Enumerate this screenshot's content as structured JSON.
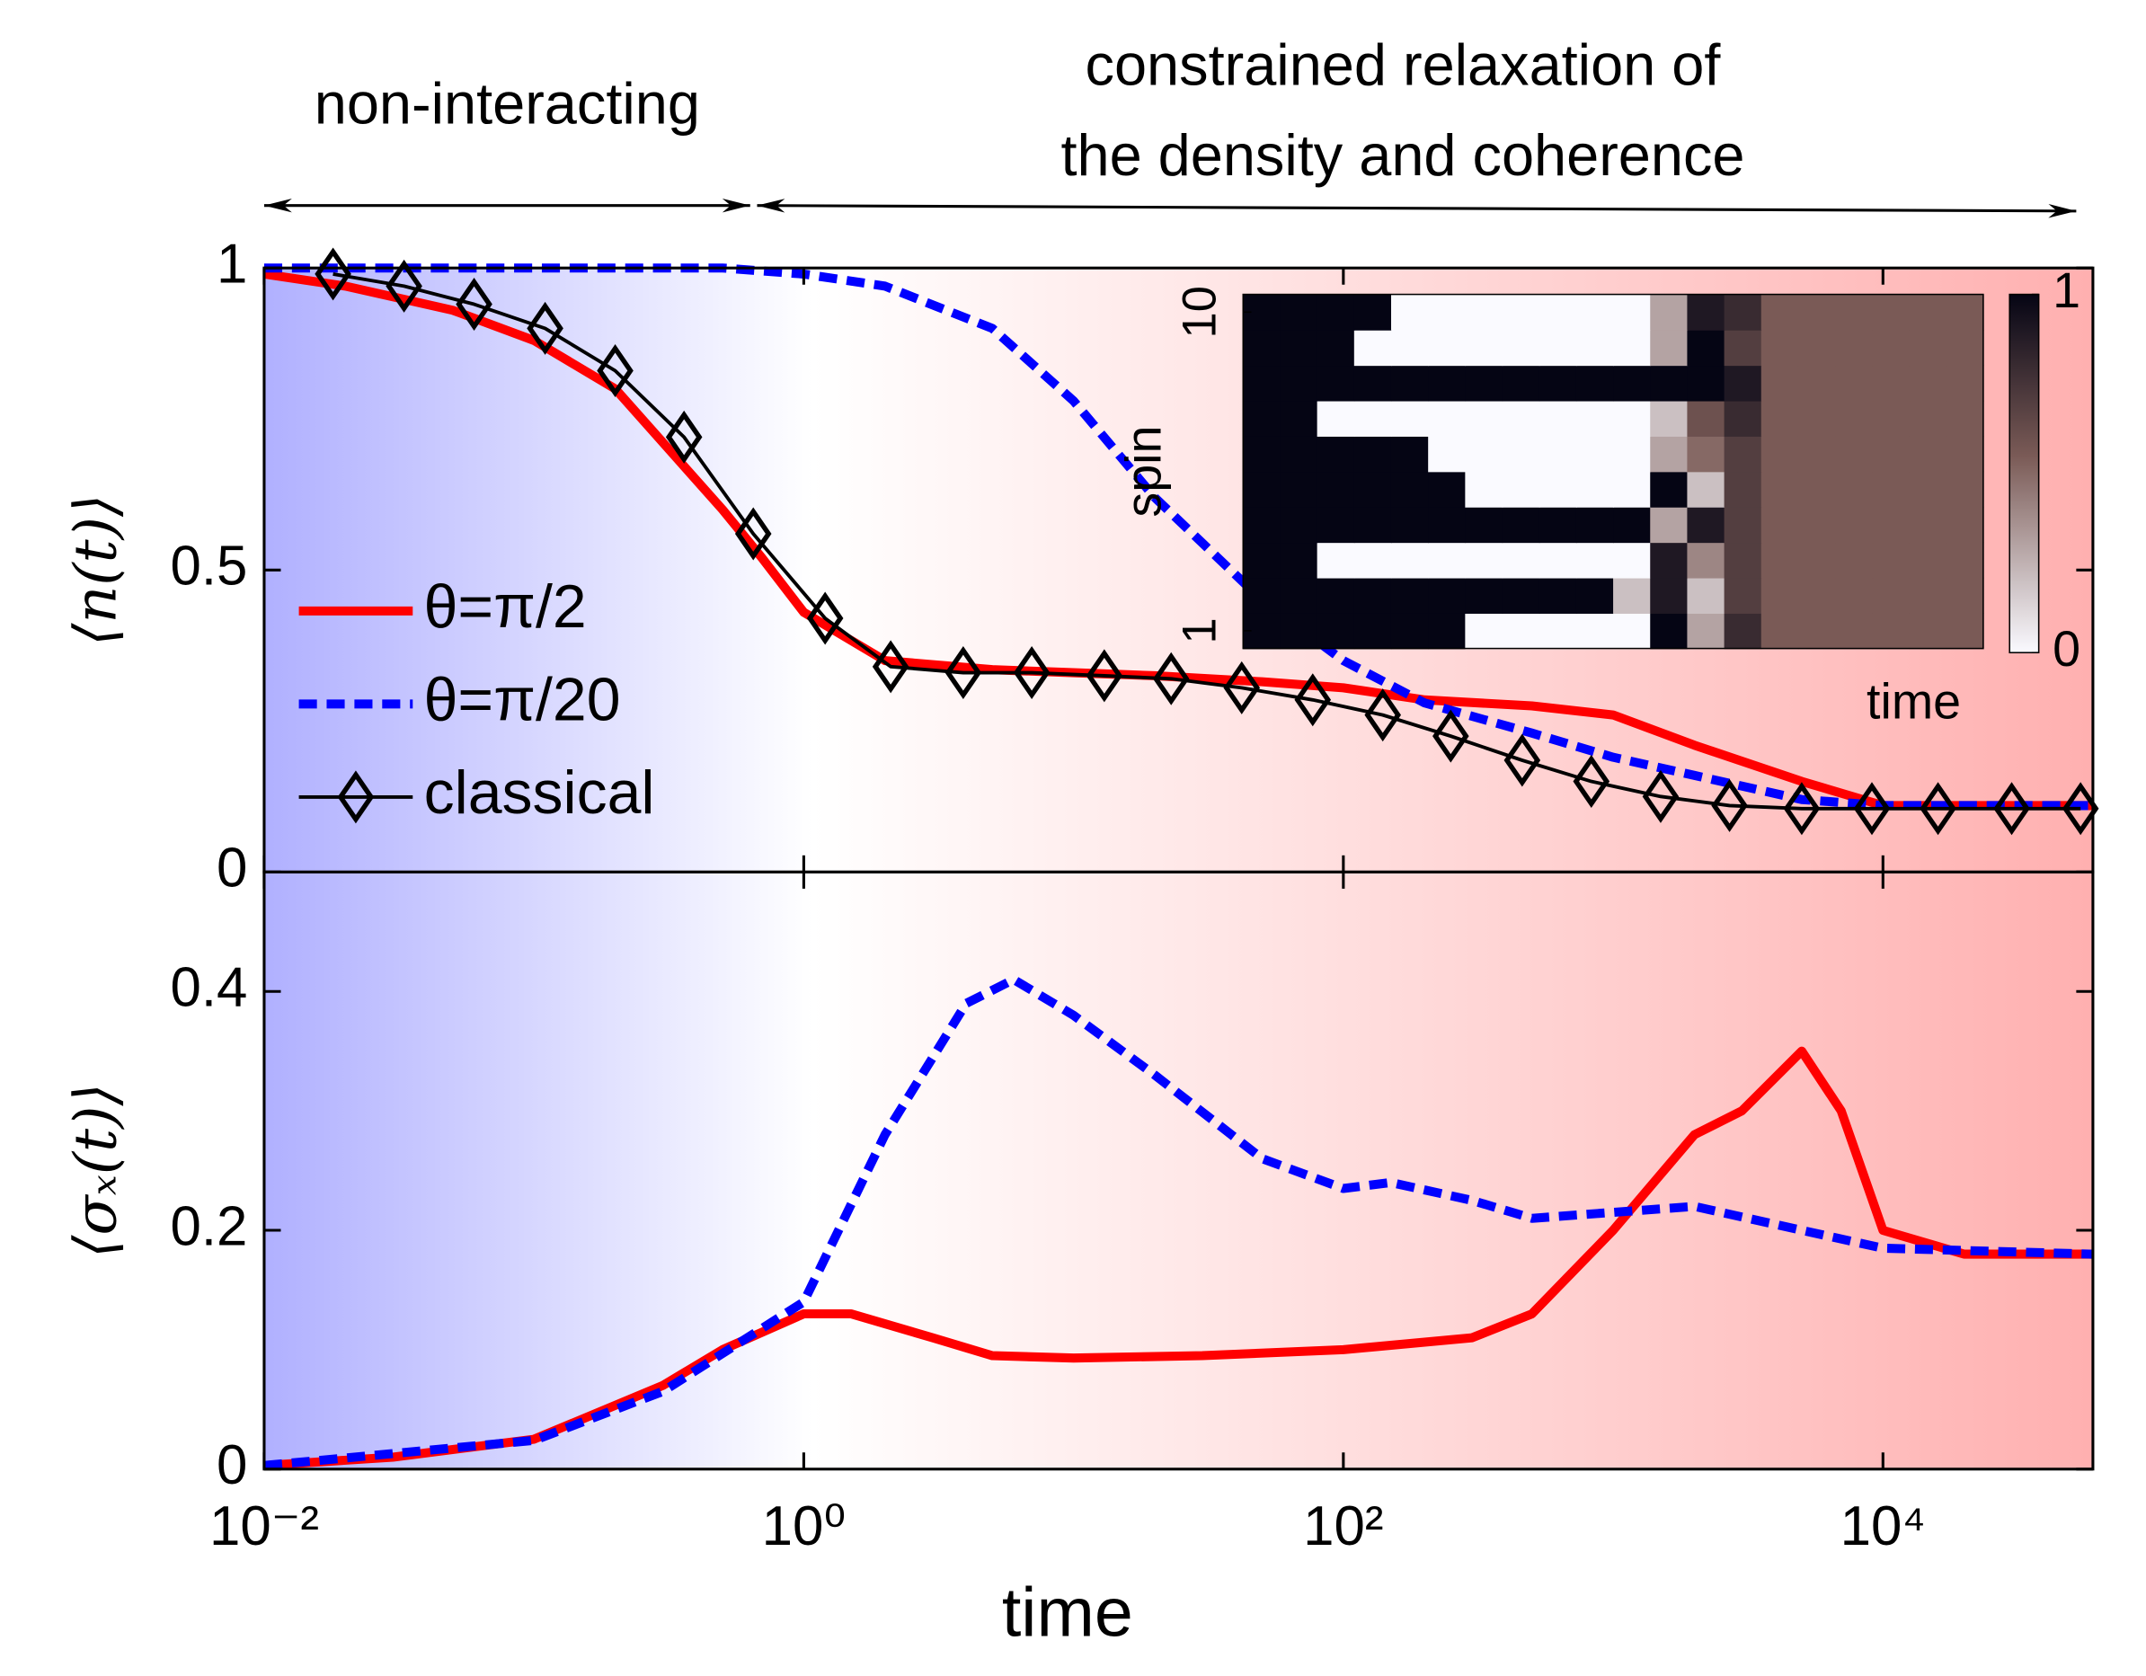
{
  "chart_data": [
    {
      "type": "line",
      "annotations": [
        "non-interacting",
        "constrained relaxation of",
        "the density and coherence"
      ],
      "ylabel": "⟨n(t)⟩",
      "xscale": "log",
      "xlim": [
        0.01,
        60000
      ],
      "ylim": [
        0,
        1
      ],
      "yticks": [
        0,
        0.5,
        1
      ],
      "legend": "left",
      "series": [
        {
          "name": "θ=π/2",
          "color": "#ff0000",
          "style": "solid",
          "x": [
            0.01,
            0.02,
            0.05,
            0.1,
            0.2,
            0.5,
            0.7,
            1,
            2,
            5,
            10,
            20,
            50,
            100,
            200,
            500,
            1000,
            2000,
            5000,
            10000,
            60000
          ],
          "values": [
            0.99,
            0.97,
            0.93,
            0.88,
            0.8,
            0.6,
            0.52,
            0.43,
            0.35,
            0.335,
            0.33,
            0.325,
            0.315,
            0.305,
            0.285,
            0.275,
            0.26,
            0.21,
            0.15,
            0.11,
            0.11
          ]
        },
        {
          "name": "θ=π/20",
          "color": "#0000ff",
          "style": "dashed",
          "x": [
            0.01,
            0.1,
            0.5,
            1,
            2,
            5,
            10,
            20,
            50,
            100,
            200,
            500,
            1000,
            2000,
            5000,
            10000,
            60000
          ],
          "values": [
            1,
            1,
            1,
            0.99,
            0.97,
            0.9,
            0.78,
            0.62,
            0.45,
            0.35,
            0.28,
            0.23,
            0.19,
            0.16,
            0.12,
            0.11,
            0.11
          ]
        },
        {
          "name": "classical",
          "color": "#000000",
          "style": "thin",
          "marker": "diamond",
          "x": [
            0.018,
            0.033,
            0.06,
            0.11,
            0.2,
            0.36,
            0.65,
            1.2,
            2.1,
            3.9,
            7,
            13,
            23,
            42,
            77,
            140,
            250,
            460,
            830,
            1500,
            2700,
            5000,
            9100,
            16000,
            30000,
            54000
          ],
          "values": [
            0.99,
            0.97,
            0.94,
            0.9,
            0.83,
            0.72,
            0.56,
            0.42,
            0.34,
            0.33,
            0.33,
            0.325,
            0.32,
            0.305,
            0.285,
            0.26,
            0.225,
            0.185,
            0.15,
            0.125,
            0.11,
            0.105,
            0.105,
            0.105,
            0.105,
            0.105
          ]
        }
      ]
    },
    {
      "type": "line",
      "xlabel": "time",
      "ylabel": "⟨σₓ(t)⟩",
      "xscale": "log",
      "xlim": [
        0.01,
        60000
      ],
      "xticks": [
        {
          "value": 0.01,
          "label": "10⁻²"
        },
        {
          "value": 1,
          "label": "10⁰"
        },
        {
          "value": 100,
          "label": "10²"
        },
        {
          "value": 10000,
          "label": "10⁴"
        }
      ],
      "ylim": [
        0,
        0.5
      ],
      "yticks": [
        0,
        0.2,
        0.4
      ],
      "series": [
        {
          "color": "#ff0000",
          "style": "solid",
          "x": [
            0.01,
            0.03,
            0.1,
            0.3,
            0.5,
            1,
            1.5,
            3,
            5,
            10,
            30,
            100,
            300,
            500,
            1000,
            2000,
            3000,
            5000,
            7000,
            10000,
            20000,
            60000
          ],
          "values": [
            0.003,
            0.01,
            0.025,
            0.07,
            0.1,
            0.13,
            0.13,
            0.11,
            0.095,
            0.093,
            0.095,
            0.1,
            0.11,
            0.13,
            0.2,
            0.28,
            0.3,
            0.35,
            0.3,
            0.2,
            0.18,
            0.18
          ]
        },
        {
          "color": "#0000ff",
          "style": "dashed",
          "x": [
            0.01,
            0.1,
            0.3,
            1,
            2,
            4,
            6,
            10,
            20,
            50,
            100,
            150,
            300,
            500,
            1000,
            2000,
            5000,
            10000,
            60000
          ],
          "values": [
            0.003,
            0.024,
            0.065,
            0.14,
            0.28,
            0.39,
            0.41,
            0.38,
            0.33,
            0.26,
            0.235,
            0.24,
            0.225,
            0.21,
            0.215,
            0.22,
            0.2,
            0.185,
            0.18
          ]
        }
      ]
    },
    {
      "type": "heatmap",
      "xlabel": "time",
      "ylabel": "spin",
      "ylim": [
        0.5,
        10.5
      ],
      "yticks": [
        1,
        10
      ],
      "zlim": [
        0,
        1
      ],
      "zticks": [
        0,
        1
      ],
      "z": [
        [
          1,
          1,
          1,
          1,
          1,
          1,
          0,
          0,
          0,
          0,
          0,
          1,
          0.3,
          0.8,
          0.55,
          0.55,
          0.55,
          0.55,
          0.55,
          0.55
        ],
        [
          1,
          1,
          1,
          1,
          1,
          1,
          1,
          1,
          1,
          1,
          0.2,
          0.9,
          0.2,
          0.7,
          0.55,
          0.55,
          0.55,
          0.55,
          0.55,
          0.55
        ],
        [
          1,
          1,
          0,
          0,
          0,
          0,
          0,
          0,
          0,
          0,
          0,
          0.9,
          0.4,
          0.7,
          0.55,
          0.55,
          0.55,
          0.55,
          0.55,
          0.55
        ],
        [
          1,
          1,
          1,
          1,
          1,
          1,
          1,
          1,
          1,
          1,
          1,
          0.3,
          0.9,
          0.7,
          0.55,
          0.55,
          0.55,
          0.55,
          0.55,
          0.55
        ],
        [
          1,
          1,
          1,
          1,
          1,
          1,
          0,
          0,
          0,
          0,
          0,
          1,
          0.2,
          0.7,
          0.55,
          0.55,
          0.55,
          0.55,
          0.55,
          0.55
        ],
        [
          1,
          1,
          1,
          1,
          1,
          0,
          0,
          0,
          0,
          0,
          0,
          0.3,
          0.5,
          0.7,
          0.55,
          0.55,
          0.55,
          0.55,
          0.55,
          0.55
        ],
        [
          1,
          1,
          0,
          0,
          0,
          0,
          0,
          0,
          0,
          0,
          0,
          0.2,
          0.6,
          0.8,
          0.55,
          0.55,
          0.55,
          0.55,
          0.55,
          0.55
        ],
        [
          1,
          1,
          1,
          1,
          1,
          1,
          1,
          1,
          1,
          1,
          1,
          1,
          1,
          0.9,
          0.55,
          0.55,
          0.55,
          0.55,
          0.55,
          0.55
        ],
        [
          1,
          1,
          1,
          0,
          0,
          0,
          0,
          0,
          0,
          0,
          0,
          0.3,
          1,
          0.7,
          0.55,
          0.55,
          0.55,
          0.55,
          0.55,
          0.55
        ],
        [
          1,
          1,
          1,
          1,
          0,
          0,
          0,
          0,
          0,
          0,
          0,
          0.3,
          0.9,
          0.8,
          0.55,
          0.55,
          0.55,
          0.55,
          0.55,
          0.55
        ]
      ]
    }
  ]
}
